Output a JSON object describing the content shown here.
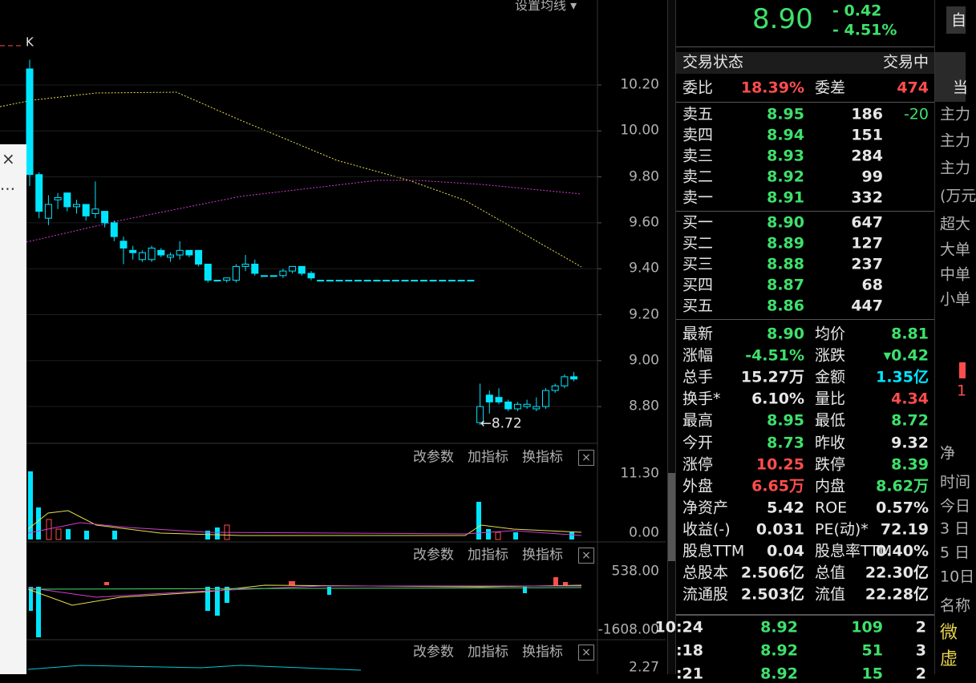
{
  "toolbar": {
    "ma_setting": "设置均线 ▾"
  },
  "chart_data": {
    "type": "candlestick",
    "legend": "K",
    "color": "#00e5ff",
    "ylim": [
      8.64,
      10.57
    ],
    "yticks": [
      {
        "value": 10.2,
        "label": "10.20"
      },
      {
        "value": 10.0,
        "label": "10.00"
      },
      {
        "value": 9.8,
        "label": "9.80"
      },
      {
        "value": 9.6,
        "label": "9.60"
      },
      {
        "value": 9.4,
        "label": "9.40"
      },
      {
        "value": 9.2,
        "label": "9.20"
      },
      {
        "value": 9.0,
        "label": "9.00"
      },
      {
        "value": 8.8,
        "label": "8.80"
      }
    ],
    "low_marker": "←8.72",
    "candles": [
      [
        10.27,
        10.31,
        9.76,
        9.81
      ],
      [
        9.81,
        9.82,
        9.62,
        9.65
      ],
      [
        9.62,
        9.72,
        9.59,
        9.68
      ],
      [
        9.7,
        9.73,
        9.66,
        9.71
      ],
      [
        9.73,
        9.73,
        9.65,
        9.67
      ],
      [
        9.67,
        9.7,
        9.64,
        9.68
      ],
      [
        9.68,
        9.68,
        9.61,
        9.63
      ],
      [
        9.64,
        9.78,
        9.62,
        9.66
      ],
      [
        9.65,
        9.65,
        9.58,
        9.6
      ],
      [
        9.6,
        9.61,
        9.52,
        9.54
      ],
      [
        9.52,
        9.54,
        9.42,
        9.49
      ],
      [
        9.48,
        9.5,
        9.44,
        9.47
      ],
      [
        9.44,
        9.48,
        9.43,
        9.47
      ],
      [
        9.44,
        9.5,
        9.43,
        9.49
      ],
      [
        9.48,
        9.49,
        9.45,
        9.46
      ],
      [
        9.45,
        9.47,
        9.43,
        9.46
      ],
      [
        9.46,
        9.52,
        9.44,
        9.48
      ],
      [
        9.48,
        9.48,
        9.45,
        9.46
      ],
      [
        9.48,
        9.48,
        9.41,
        9.42
      ],
      [
        9.42,
        9.42,
        9.34,
        9.35
      ],
      [
        9.35,
        9.35,
        9.35,
        9.35
      ],
      [
        9.35,
        9.36,
        9.34,
        9.36
      ],
      [
        9.35,
        9.42,
        9.34,
        9.41
      ],
      [
        9.41,
        9.46,
        9.39,
        9.42
      ],
      [
        9.42,
        9.44,
        9.37,
        9.38
      ],
      [
        9.37,
        9.37,
        9.37,
        9.37
      ],
      [
        9.37,
        9.37,
        9.37,
        9.37
      ],
      [
        9.37,
        9.4,
        9.36,
        9.39
      ],
      [
        9.39,
        9.41,
        9.38,
        9.41
      ],
      [
        9.41,
        9.41,
        9.37,
        9.38
      ],
      [
        9.38,
        9.39,
        9.35,
        9.36
      ],
      [
        9.35,
        9.35,
        9.35,
        9.35
      ],
      [
        9.35,
        9.35,
        9.35,
        9.35
      ],
      [
        9.35,
        9.35,
        9.35,
        9.35
      ],
      [
        9.35,
        9.35,
        9.35,
        9.35
      ],
      [
        9.35,
        9.35,
        9.35,
        9.35
      ],
      [
        9.35,
        9.35,
        9.35,
        9.35
      ],
      [
        9.35,
        9.35,
        9.35,
        9.35
      ],
      [
        9.35,
        9.35,
        9.35,
        9.35
      ],
      [
        9.35,
        9.35,
        9.35,
        9.35
      ],
      [
        9.35,
        9.35,
        9.35,
        9.35
      ],
      [
        9.35,
        9.35,
        9.35,
        9.35
      ],
      [
        9.35,
        9.35,
        9.35,
        9.35
      ],
      [
        9.35,
        9.35,
        9.35,
        9.35
      ],
      [
        9.35,
        9.35,
        9.35,
        9.35
      ],
      [
        9.35,
        9.35,
        9.35,
        9.35
      ],
      [
        9.35,
        9.35,
        9.35,
        9.35
      ],
      [
        9.35,
        9.35,
        9.35,
        9.35
      ],
      [
        8.73,
        8.9,
        8.72,
        8.8
      ],
      [
        8.85,
        8.87,
        8.77,
        8.82
      ],
      [
        8.84,
        8.88,
        8.81,
        8.82
      ],
      [
        8.82,
        8.83,
        8.78,
        8.79
      ],
      [
        8.79,
        8.82,
        8.78,
        8.81
      ],
      [
        8.8,
        8.83,
        8.79,
        8.81
      ],
      [
        8.79,
        8.84,
        8.78,
        8.8
      ],
      [
        8.8,
        8.88,
        8.79,
        8.87
      ],
      [
        8.87,
        8.9,
        8.86,
        8.89
      ],
      [
        8.89,
        8.94,
        8.88,
        8.93
      ],
      [
        8.93,
        8.95,
        8.91,
        8.92
      ]
    ]
  },
  "panels": [
    {
      "buttons": [
        "改参数",
        "加指标",
        "换指标"
      ],
      "axis": [
        "11.30",
        "0.00"
      ]
    },
    {
      "buttons": [
        "改参数",
        "加指标",
        "换指标"
      ],
      "axis": [
        "538.00",
        "-1608.00"
      ]
    },
    {
      "buttons": [
        "改参数",
        "加指标",
        "换指标"
      ],
      "axis": [
        "2.27"
      ]
    }
  ],
  "quote": {
    "price": "8.90",
    "change": "- 0.42",
    "change_pct": "- 4.51%"
  },
  "status": {
    "label": "交易状态",
    "value": "交易中"
  },
  "ratio": {
    "label": "委比",
    "value": "18.39%",
    "label2": "委差",
    "value2": "474"
  },
  "asks": [
    [
      "卖五",
      "8.95",
      "186",
      "-20"
    ],
    [
      "卖四",
      "8.94",
      "151"
    ],
    [
      "卖三",
      "8.93",
      "284"
    ],
    [
      "卖二",
      "8.92",
      "99"
    ],
    [
      "卖一",
      "8.91",
      "332"
    ]
  ],
  "bids": [
    [
      "买一",
      "8.90",
      "647"
    ],
    [
      "买二",
      "8.89",
      "127"
    ],
    [
      "买三",
      "8.88",
      "237"
    ],
    [
      "买四",
      "8.87",
      "68"
    ],
    [
      "买五",
      "8.86",
      "447"
    ]
  ],
  "stats": [
    {
      "label": "最新",
      "value": "8.90",
      "color": "#3ee06b",
      "label2": "均价",
      "value2": "8.81",
      "color2": "#3ee06b"
    },
    {
      "label": "涨幅",
      "value": "-4.51%",
      "color": "#3ee06b",
      "label2": "涨跌",
      "value2": "▾0.42",
      "color2": "#3ee06b"
    },
    {
      "label": "总手",
      "value": "15.27万",
      "color": "#e6e6e6",
      "label2": "金额",
      "value2": "1.35亿",
      "color2": "#00e5ff"
    },
    {
      "label": "换手*",
      "value": "6.10%",
      "color": "#e6e6e6",
      "label2": "量比",
      "value2": "4.34",
      "color2": "#ff4d4d"
    },
    {
      "label": "最高",
      "value": "8.95",
      "color": "#3ee06b",
      "label2": "最低",
      "value2": "8.72",
      "color2": "#3ee06b"
    },
    {
      "label": "今开",
      "value": "8.73",
      "color": "#3ee06b",
      "label2": "昨收",
      "value2": "9.32",
      "color2": "#e6e6e6"
    },
    {
      "label": "涨停",
      "value": "10.25",
      "color": "#ff4d4d",
      "label2": "跌停",
      "value2": "8.39",
      "color2": "#3ee06b"
    },
    {
      "label": "外盘",
      "value": "6.65万",
      "color": "#ff4d4d",
      "label2": "内盘",
      "value2": "8.62万",
      "color2": "#3ee06b"
    },
    {
      "label": "净资产",
      "value": "5.42",
      "color": "#e6e6e6",
      "label2": "ROE",
      "value2": "0.57%",
      "color2": "#e6e6e6"
    },
    {
      "label": "收益(-)",
      "value": "0.031",
      "color": "#e6e6e6",
      "label2": "PE(动)*",
      "value2": "72.19",
      "color2": "#e6e6e6"
    },
    {
      "label": "股息TTM",
      "value": "0.04",
      "color": "#e6e6e6",
      "label2": "股息率TTM",
      "value2": "0.40%",
      "color2": "#e6e6e6"
    },
    {
      "label": "总股本",
      "value": "2.506亿",
      "color": "#e6e6e6",
      "label2": "总值",
      "value2": "22.30亿",
      "color2": "#e6e6e6"
    },
    {
      "label": "流通股",
      "value": "2.503亿",
      "color": "#e6e6e6",
      "label2": "流值",
      "value2": "22.28亿",
      "color2": "#e6e6e6"
    }
  ],
  "trades": [
    [
      "10:24",
      "8.92",
      "109",
      "2"
    ],
    [
      ":18",
      "8.92",
      "51",
      "3"
    ],
    [
      ":21",
      "8.92",
      "15",
      "2"
    ]
  ],
  "side": {
    "top": "自",
    "tab": "当",
    "items": [
      "主力",
      "主力",
      "主力",
      "(万元",
      "超大",
      "大单",
      "中单",
      "小单",
      "1",
      "净",
      "时间",
      "今日",
      "3 日",
      "5 日",
      "10日",
      "名称",
      "微",
      "虚"
    ]
  }
}
